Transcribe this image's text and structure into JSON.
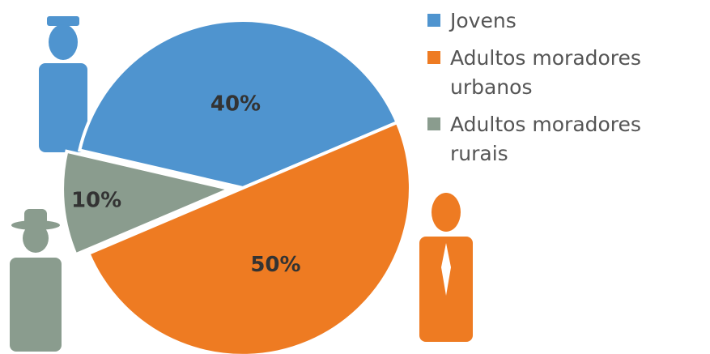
{
  "chart_data": {
    "type": "pie",
    "categories": [
      "Jovens",
      "Adultos moradores urbanos",
      "Adultos moradores rurais"
    ],
    "values": [
      40,
      50,
      10
    ],
    "value_labels": [
      "40%",
      "50%",
      "10%"
    ],
    "colors": [
      "#4f94cf",
      "#ee7b22",
      "#8a9c8e"
    ],
    "legend": "right"
  }
}
